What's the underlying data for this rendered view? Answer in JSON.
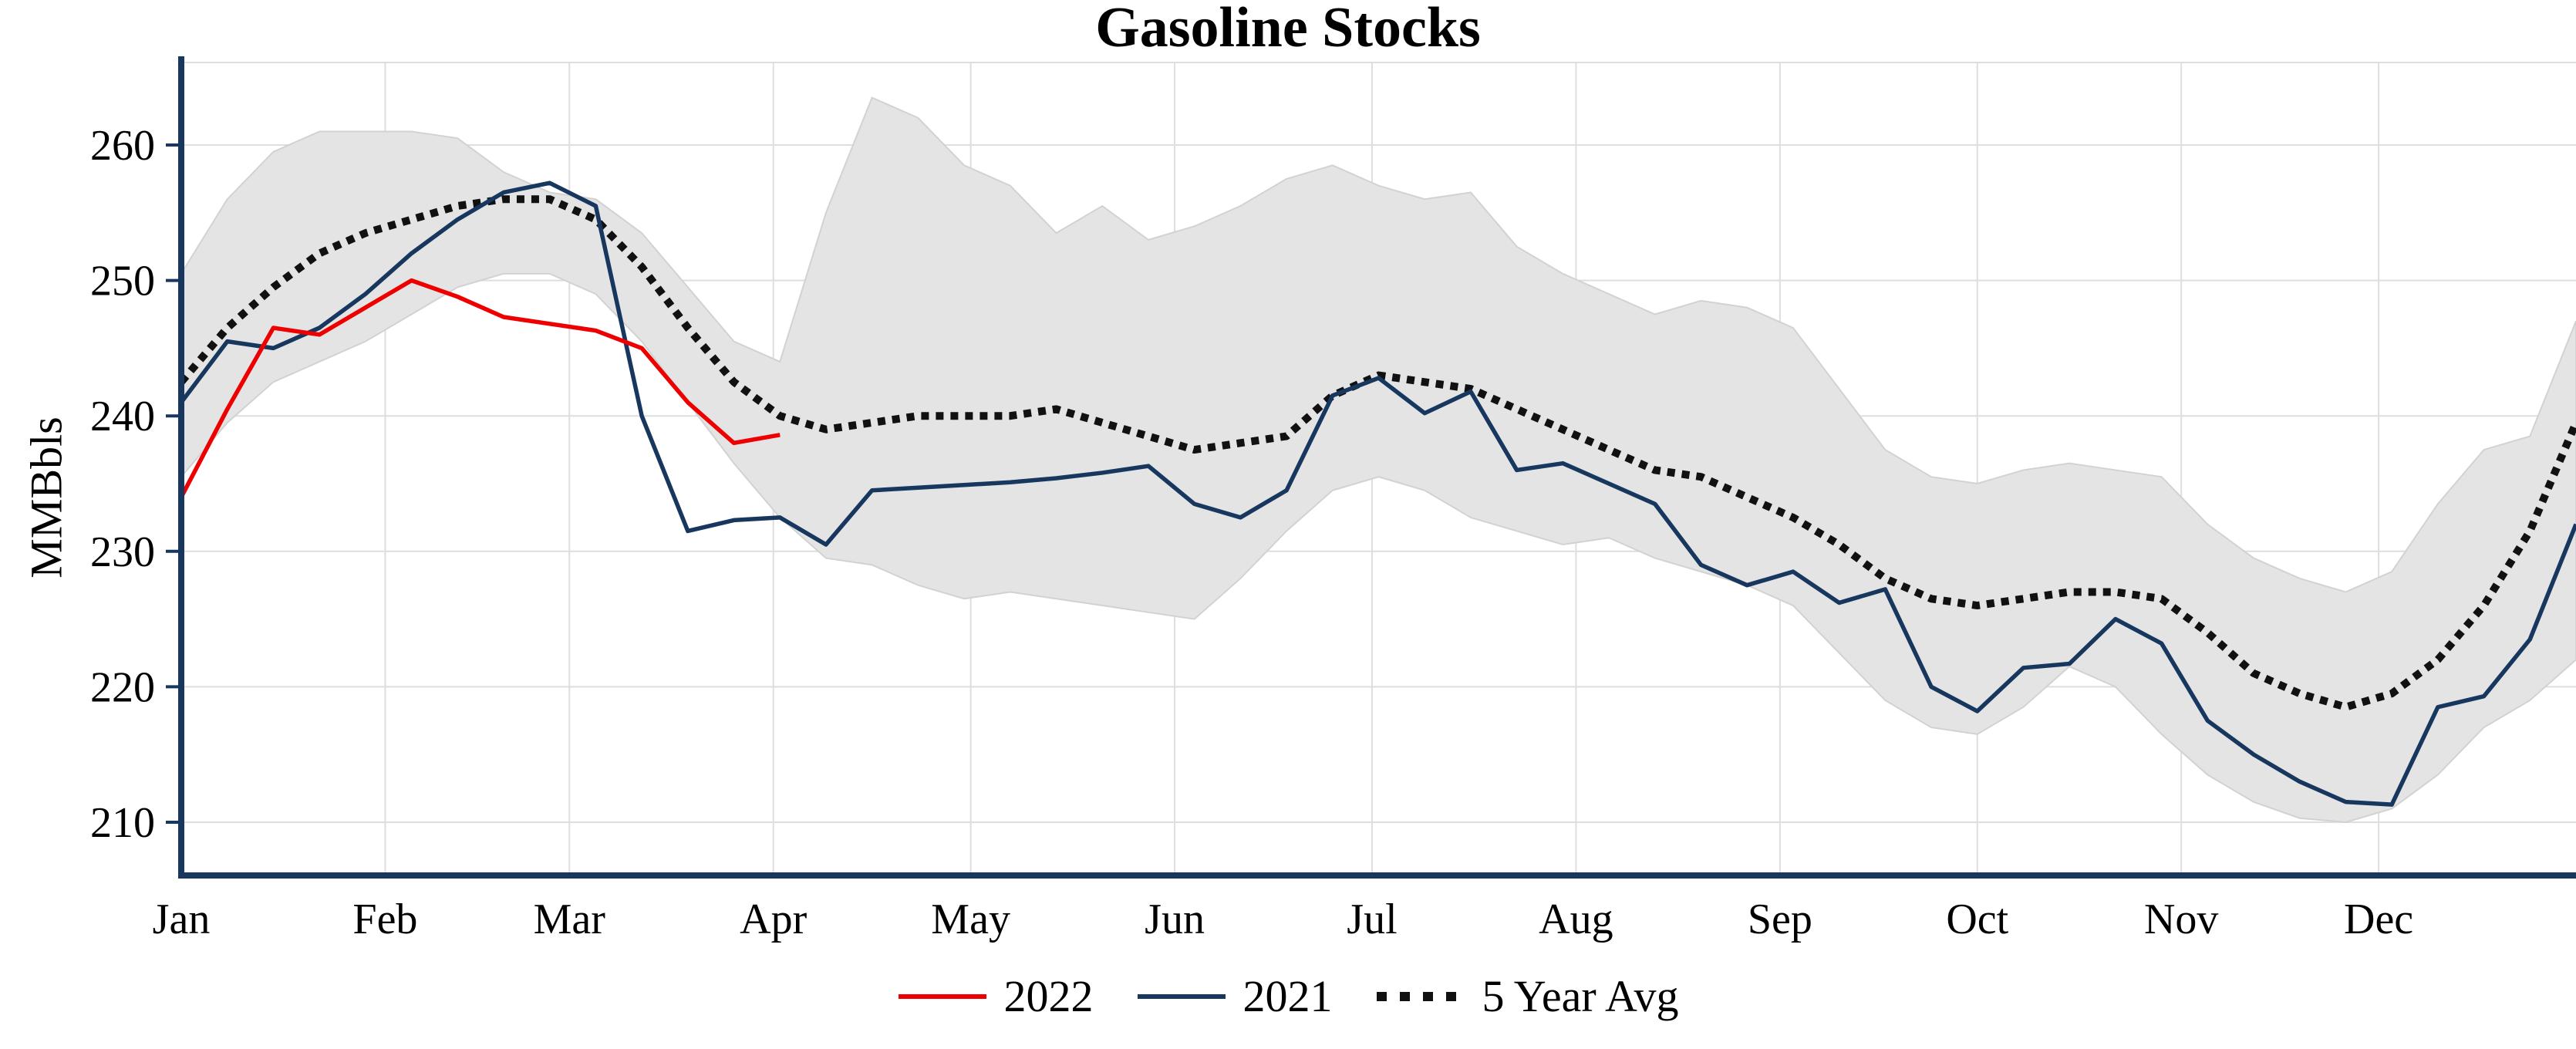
{
  "chart_data": {
    "type": "line",
    "title": "Gasoline Stocks",
    "ylabel": "MMBbls",
    "yticks": [
      210,
      220,
      230,
      240,
      250,
      260
    ],
    "ylim": [
      206,
      266
    ],
    "months": [
      "Jan",
      "Feb",
      "Mar",
      "Apr",
      "May",
      "Jun",
      "Jul",
      "Aug",
      "Sep",
      "Oct",
      "Nov",
      "Dec"
    ],
    "month_start_days": [
      0,
      31,
      59,
      90,
      120,
      151,
      181,
      212,
      243,
      273,
      304,
      334
    ],
    "week_interval_days": 7,
    "total_days": 364,
    "grid": true,
    "legend_position": "bottom-center",
    "colors": {
      "axis": "#17375e",
      "grid": "#dedede",
      "band_fill": "#e4e4e4",
      "band_edge": "#d2d2d2",
      "series_2022": "#ee0000",
      "series_2021": "#17375e",
      "series_avg": "#111111"
    },
    "band": {
      "upper": [
        250.5,
        256,
        259.5,
        261,
        261,
        261,
        260.5,
        258,
        256.5,
        256,
        253.5,
        249.5,
        245.5,
        244,
        255,
        263.5,
        262,
        258.5,
        257,
        253.5,
        255.5,
        253,
        254,
        255.5,
        257.5,
        258.5,
        257,
        256,
        256.5,
        252.5,
        250.5,
        249,
        247.5,
        248.5,
        248,
        246.5,
        242,
        237.5,
        235.5,
        235,
        236,
        236.5,
        236,
        235.5,
        232,
        229.5,
        228,
        227,
        228.5,
        233.5,
        237.5,
        238.5,
        247
      ],
      "lower": [
        235.5,
        239.5,
        242.5,
        244,
        245.5,
        247.5,
        249.5,
        250.5,
        250.5,
        249,
        245.5,
        241,
        236.5,
        232.5,
        229.5,
        229,
        227.5,
        226.5,
        227,
        226.5,
        226,
        225.5,
        225,
        228,
        231.5,
        234.5,
        235.5,
        234.5,
        232.5,
        231.5,
        230.5,
        231,
        229.5,
        228.5,
        227.5,
        226,
        222.5,
        219,
        217,
        216.5,
        218.5,
        221.5,
        220,
        216.5,
        213.5,
        211.5,
        210.3,
        210,
        211,
        213.5,
        217,
        219,
        222
      ]
    },
    "series": [
      {
        "name": "2022",
        "color": "#ee0000",
        "style": "solid",
        "values": [
          234,
          240.5,
          246.5,
          246,
          248,
          250,
          248.8,
          247.3,
          246.8,
          246.3,
          245,
          241,
          238,
          238.6
        ]
      },
      {
        "name": "2021",
        "color": "#17375e",
        "style": "solid",
        "values": [
          241,
          245.5,
          245,
          246.5,
          249,
          252,
          254.5,
          256.5,
          257.2,
          255.5,
          240,
          231.5,
          232.3,
          232.5,
          230.5,
          234.5,
          234.7,
          234.9,
          235.1,
          235.4,
          235.8,
          236.3,
          233.5,
          232.5,
          234.5,
          241.5,
          242.8,
          240.2,
          241.8,
          236,
          236.5,
          235,
          233.5,
          229,
          227.5,
          228.5,
          226.2,
          227.2,
          220,
          218.2,
          221.4,
          221.7,
          225,
          223.2,
          217.5,
          215,
          213,
          211.5,
          211.3,
          218.5,
          219.3,
          223.5,
          232
        ]
      },
      {
        "name": "5 Year Avg",
        "color": "#111111",
        "style": "dotted",
        "values": [
          242.5,
          246.5,
          249.5,
          252,
          253.5,
          254.5,
          255.5,
          256,
          256,
          254.5,
          251,
          246.5,
          242.5,
          240,
          239,
          239.5,
          240,
          240,
          240,
          240.5,
          239.5,
          238.5,
          237.5,
          238,
          238.5,
          241.5,
          243,
          242.5,
          242,
          240.5,
          239,
          237.5,
          236,
          235.5,
          234,
          232.5,
          230.5,
          228,
          226.5,
          226,
          226.5,
          227,
          227,
          226.5,
          224,
          221,
          219.5,
          218.5,
          219.5,
          222,
          226,
          231.5,
          239.5
        ]
      }
    ]
  }
}
